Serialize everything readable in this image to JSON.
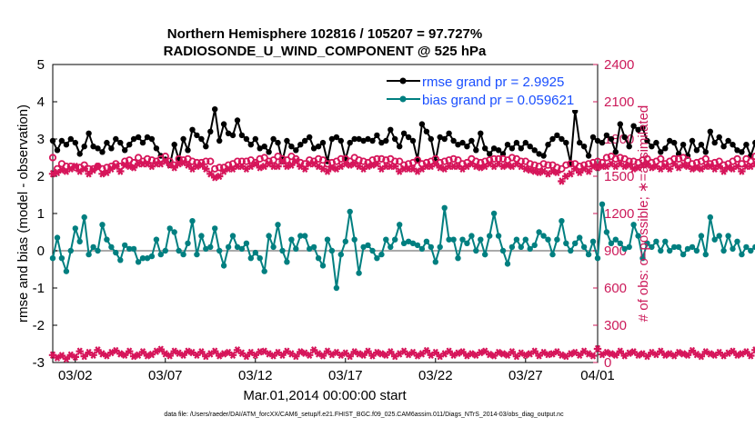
{
  "chart_data": {
    "type": "line",
    "title_line1": "Northern Hemisphere 102816 / 105207 = 97.727%",
    "title_line2": "RADIOSONDE_U_WIND_COMPONENT @ 525 hPa",
    "ylabel_left": "rmse and bias (model - observation)",
    "ylabel_right": "# of obs: o=possible; ∗=assimilated",
    "xlabel": "Mar.01,2014 00:00:00 start",
    "footnote": "data file: /Users/raeder/DAI/ATM_forcXX/CAM6_setup/f.e21.FHIST_BGC.f09_025.CAM6assim.011/Diags_NTrS_2014-03/obs_diag_output.nc",
    "ylim_left": [
      -3,
      5
    ],
    "ylim_right": [
      0,
      2400
    ],
    "xlim": [
      0.75,
      31.0
    ],
    "left_ticks": [
      "-3",
      "-2",
      "-1",
      "0",
      "1",
      "2",
      "3",
      "4",
      "5"
    ],
    "right_ticks": [
      "0",
      "300",
      "600",
      "900",
      "1200",
      "1500",
      "1800",
      "2100",
      "2400"
    ],
    "x_ticks": [
      {
        "day": 2,
        "label": "03/02"
      },
      {
        "day": 7,
        "label": "03/07"
      },
      {
        "day": 12,
        "label": "03/12"
      },
      {
        "day": 17,
        "label": "03/17"
      },
      {
        "day": 22,
        "label": "03/22"
      },
      {
        "day": 27,
        "label": "03/27"
      },
      {
        "day": 32,
        "label": "04/01"
      }
    ],
    "zero_line": 0,
    "colors": {
      "rmse": "#000000",
      "bias": "#007f80",
      "obs": "#d6155a",
      "right_axis": "#cc1a5a",
      "zero": "#aaaaaa",
      "legend_text": "#1a4fff"
    },
    "series": [
      {
        "name": "rmse",
        "legend": "rmse grand pr = 2.9925",
        "x_start": 0.75,
        "x_step": 0.25,
        "values": [
          2.95,
          2.7,
          2.95,
          2.85,
          3.0,
          2.9,
          2.6,
          2.8,
          3.15,
          2.8,
          2.75,
          2.65,
          2.9,
          2.75,
          3.0,
          2.9,
          2.7,
          2.85,
          3.0,
          3.05,
          2.9,
          3.05,
          3.0,
          2.75,
          2.55,
          2.45,
          2.3,
          2.85,
          2.45,
          3.0,
          2.7,
          3.25,
          3.1,
          3.0,
          2.8,
          3.2,
          3.8,
          2.95,
          3.4,
          3.15,
          3.1,
          3.5,
          3.1,
          3.0,
          2.85,
          3.0,
          2.75,
          2.8,
          2.65,
          3.0,
          2.9,
          2.4,
          2.95,
          2.8,
          2.7,
          2.85,
          2.95,
          3.05,
          2.75,
          2.8,
          2.9,
          2.4,
          3.0,
          3.05,
          2.95,
          2.45,
          2.9,
          3.0,
          3.0,
          2.95,
          3.0,
          2.95,
          3.1,
          2.9,
          2.95,
          3.25,
          3.0,
          2.8,
          3.15,
          3.05,
          2.95,
          2.45,
          3.4,
          3.2,
          3.0,
          2.4,
          3.05,
          3.0,
          3.15,
          2.95,
          2.85,
          2.9,
          2.8,
          2.95,
          2.7,
          3.15,
          2.75,
          2.6,
          2.75,
          2.7,
          2.6,
          2.85,
          2.75,
          2.9,
          2.75,
          2.9,
          2.8,
          2.7,
          2.6,
          2.55,
          2.85,
          3.0,
          3.1,
          3.0,
          2.9,
          2.35,
          3.75,
          2.9,
          2.8,
          2.55,
          3.05,
          2.95,
          2.9,
          3.1,
          3.0,
          2.65,
          3.4,
          3.05,
          2.8,
          3.35,
          3.25,
          3.3,
          2.95,
          2.8,
          2.9,
          2.65,
          2.75,
          2.95,
          2.9,
          2.6,
          2.85,
          2.55,
          2.95,
          2.7,
          2.85,
          2.65,
          3.2,
          2.9,
          3.05,
          2.8,
          2.95,
          2.85,
          2.7,
          2.65,
          2.85,
          2.55,
          2.9,
          2.6,
          2.65,
          2.9,
          2.6,
          2.8,
          2.7
        ]
      },
      {
        "name": "bias",
        "legend": "bias grand pr = 0.059621",
        "x_start": 0.75,
        "x_step": 0.25,
        "values": [
          -0.2,
          0.35,
          -0.2,
          -0.55,
          0.0,
          0.6,
          0.25,
          0.9,
          -0.1,
          0.1,
          0.0,
          0.7,
          0.3,
          0.1,
          -0.05,
          -0.25,
          0.15,
          0.05,
          0.05,
          -0.3,
          -0.2,
          -0.2,
          -0.15,
          0.3,
          -0.1,
          0.0,
          0.6,
          0.5,
          0.0,
          -0.1,
          0.2,
          0.8,
          -0.1,
          0.4,
          0.05,
          0.1,
          0.6,
          0.0,
          -0.4,
          0.1,
          0.4,
          0.1,
          0.05,
          0.2,
          -0.2,
          -0.05,
          -0.2,
          -0.55,
          0.4,
          0.1,
          0.7,
          0.0,
          -0.3,
          0.3,
          0.05,
          0.4,
          0.4,
          0.05,
          0.1,
          -0.2,
          -0.4,
          0.3,
          0.0,
          -1.0,
          -0.1,
          0.25,
          1.05,
          0.3,
          -0.6,
          0.1,
          0.15,
          0.0,
          -0.2,
          -0.1,
          0.3,
          0.1,
          0.3,
          0.7,
          0.2,
          0.25,
          0.2,
          0.15,
          0.05,
          0.25,
          0.1,
          -0.3,
          0.1,
          1.15,
          0.3,
          0.3,
          -0.2,
          0.3,
          0.2,
          0.4,
          0.0,
          0.3,
          -0.1,
          0.4,
          1.0,
          0.4,
          0.0,
          -0.35,
          0.1,
          0.3,
          0.1,
          0.3,
          0.05,
          0.15,
          0.5,
          0.4,
          0.3,
          -0.1,
          0.3,
          0.8,
          0.2,
          0.0,
          0.2,
          0.35,
          0.1,
          -0.1,
          0.25,
          -0.2,
          1.25,
          0.5,
          0.2,
          0.3,
          0.2,
          0.05,
          0.1,
          0.7,
          0.4,
          -0.2,
          0.2,
          0.1,
          0.25,
          0.0,
          0.25,
          0.0,
          0.1,
          0.1,
          -0.1,
          0.05,
          0.1,
          0.0,
          0.4,
          -0.1,
          0.9,
          0.3,
          0.4,
          0.0,
          0.4,
          0.05,
          0.25,
          -0.1,
          0.1,
          0.0,
          0.1,
          -0.5,
          0.0,
          0.0,
          0.8,
          0.4,
          0.6
        ]
      },
      {
        "name": "obs_possible",
        "marker": "o",
        "axis": "right",
        "x_start": 0.75,
        "x_step": 0.25,
        "values": [
          1650,
          1560,
          1600,
          1580,
          1580,
          1570,
          1570,
          1590,
          1560,
          1560,
          1580,
          1560,
          1570,
          1580,
          1600,
          1580,
          1620,
          1630,
          1610,
          1650,
          1620,
          1640,
          1630,
          1620,
          1640,
          1660,
          1620,
          1590,
          1640,
          1630,
          1640,
          1620,
          1610,
          1610,
          1620,
          1620,
          1560,
          1570,
          1570,
          1590,
          1600,
          1620,
          1620,
          1620,
          1630,
          1610,
          1640,
          1650,
          1620,
          1630,
          1660,
          1640,
          1630,
          1660,
          1640,
          1610,
          1600,
          1630,
          1620,
          1640,
          1630,
          1600,
          1610,
          1620,
          1640,
          1640,
          1620,
          1650,
          1630,
          1620,
          1610,
          1630,
          1640,
          1640,
          1630,
          1640,
          1620,
          1620,
          1590,
          1600,
          1610,
          1630,
          1600,
          1610,
          1620,
          1640,
          1610,
          1620,
          1630,
          1640,
          1630,
          1600,
          1610,
          1640,
          1620,
          1610,
          1620,
          1630,
          1640,
          1640,
          1640,
          1630,
          1650,
          1640,
          1620,
          1620,
          1600,
          1590,
          1580,
          1600,
          1590,
          1590,
          1570,
          1560,
          1590,
          1600,
          1600,
          1580,
          1590,
          1600,
          1610,
          1620,
          1610,
          1650,
          1660,
          1640,
          1650,
          1640,
          1620,
          1620,
          1610,
          1630,
          1640,
          1610,
          1620,
          1640,
          1600,
          1620,
          1640,
          1640,
          1650,
          1630,
          1600,
          1610,
          1620,
          1640,
          1600,
          1610,
          1620,
          1590,
          1600,
          1620,
          1640,
          1600,
          1640,
          1620,
          1660,
          1650,
          1640,
          1640,
          1630,
          1650,
          1660
        ]
      },
      {
        "name": "obs_assimilated",
        "marker": "*",
        "axis": "right",
        "x_start": 0.75,
        "x_step": 0.25,
        "values": [
          1520,
          1530,
          1550,
          1540,
          1560,
          1580,
          1540,
          1560,
          1520,
          1550,
          1580,
          1520,
          1530,
          1560,
          1580,
          1540,
          1590,
          1580,
          1570,
          1600,
          1600,
          1600,
          1580,
          1600,
          1600,
          1620,
          1590,
          1570,
          1600,
          1610,
          1590,
          1560,
          1580,
          1590,
          1560,
          1520,
          1490,
          1500,
          1540,
          1560,
          1560,
          1580,
          1580,
          1560,
          1580,
          1600,
          1570,
          1580,
          1600,
          1580,
          1580,
          1620,
          1580,
          1590,
          1620,
          1580,
          1560,
          1600,
          1600,
          1580,
          1560,
          1540,
          1570,
          1560,
          1580,
          1600,
          1590,
          1600,
          1580,
          1560,
          1580,
          1590,
          1600,
          1560,
          1580,
          1580,
          1580,
          1540,
          1560,
          1560,
          1560,
          1540,
          1560,
          1580,
          1580,
          1600,
          1570,
          1560,
          1580,
          1580,
          1580,
          1560,
          1580,
          1600,
          1580,
          1570,
          1580,
          1600,
          1580,
          1600,
          1580,
          1590,
          1580,
          1600,
          1580,
          1560,
          1550,
          1540,
          1530,
          1540,
          1520,
          1540,
          1530,
          1460,
          1500,
          1520,
          1560,
          1530,
          1560,
          1540,
          1580,
          1570,
          1580,
          1580,
          1600,
          1580,
          1600,
          1580,
          1590,
          1560,
          1570,
          1590,
          1600,
          1570,
          1580,
          1560,
          1580,
          1560,
          1600,
          1570,
          1590,
          1580,
          1560,
          1570,
          1560,
          1580,
          1580,
          1560,
          1580,
          1540,
          1570,
          1560,
          1580,
          1540,
          1580,
          1580,
          1600,
          1560,
          1620,
          1600,
          1600,
          1620,
          1580
        ]
      },
      {
        "name": "obs_low",
        "marker": "*",
        "axis": "right",
        "x_start": 0.75,
        "x_step": 0.25,
        "values": [
          60,
          40,
          55,
          30,
          60,
          45,
          90,
          50,
          80,
          60,
          100,
          70,
          55,
          80,
          95,
          70,
          60,
          90,
          50,
          60,
          85,
          55,
          65,
          90,
          105,
          70,
          55,
          90,
          75,
          60,
          90,
          80,
          60,
          85,
          50,
          70,
          90,
          55,
          70,
          80,
          60,
          100,
          75,
          50,
          80,
          60,
          85,
          90,
          70,
          55,
          80,
          60,
          90,
          70,
          50,
          85,
          75,
          60,
          100,
          70,
          55,
          90,
          65,
          80,
          60,
          75,
          50,
          85,
          70,
          60,
          90,
          55,
          80,
          70,
          60,
          85,
          50,
          70,
          90,
          65,
          80,
          55,
          70,
          95,
          60,
          80,
          50,
          70,
          90,
          60,
          75,
          85,
          55,
          70,
          60,
          80,
          90,
          65,
          55,
          80,
          70,
          60,
          85,
          50,
          75,
          60,
          70,
          90,
          55,
          80,
          65,
          70,
          85,
          60,
          50,
          70,
          80,
          60,
          90,
          70,
          55,
          110,
          65,
          80,
          70,
          60,
          90,
          55,
          75,
          85,
          60,
          70,
          50,
          80,
          65,
          90,
          60,
          70,
          55,
          80,
          70,
          60,
          95,
          65,
          50,
          85,
          70,
          60,
          80,
          55,
          75,
          90,
          60,
          70,
          85,
          55,
          100,
          65,
          70,
          80,
          60,
          90,
          75
        ]
      }
    ]
  }
}
